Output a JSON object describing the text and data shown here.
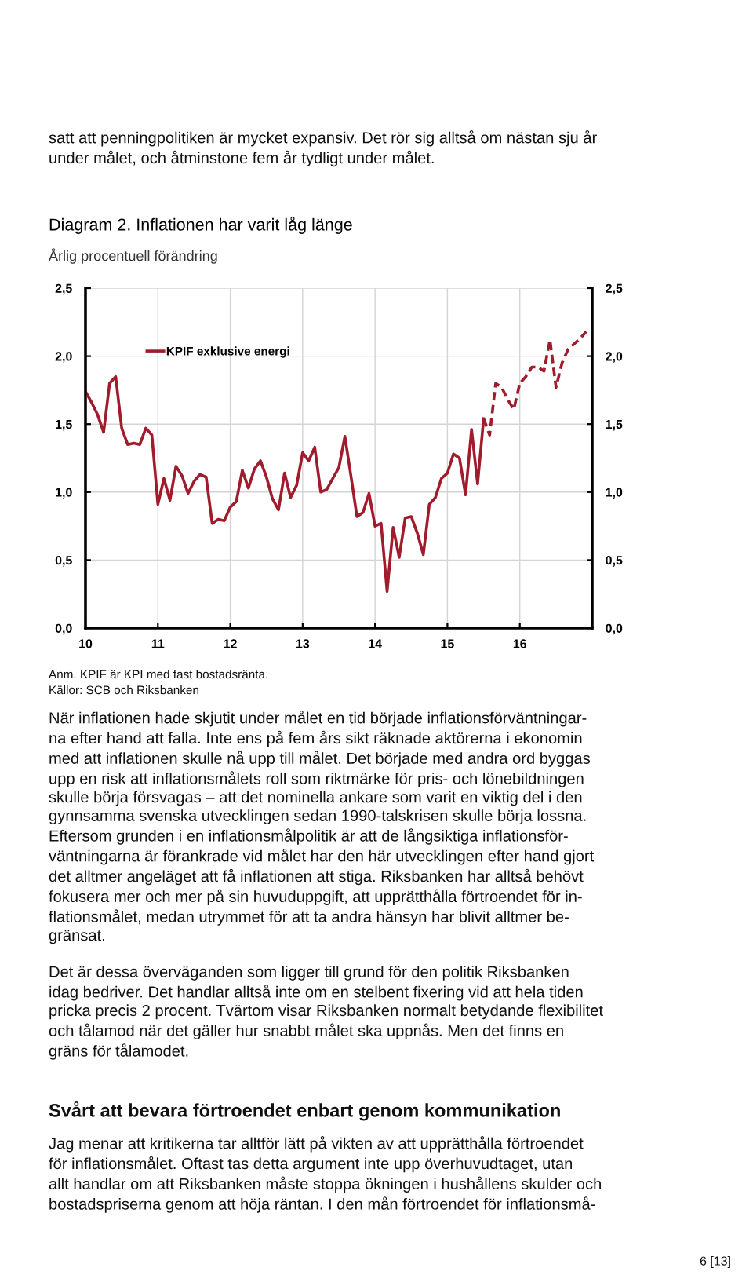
{
  "chart_data": {
    "type": "line",
    "title": "Diagram 2. Inflationen har varit låg länge",
    "subtitle": "Årlig procentuell förändring",
    "series": [
      {
        "name": "KPIF exklusive energi",
        "color": "#a01c2c",
        "line_style": "solid",
        "x": [
          "2010-01",
          "2010-02",
          "2010-03",
          "2010-04",
          "2010-05",
          "2010-06",
          "2010-07",
          "2010-08",
          "2010-09",
          "2010-10",
          "2010-11",
          "2010-12",
          "2011-01",
          "2011-02",
          "2011-03",
          "2011-04",
          "2011-05",
          "2011-06",
          "2011-07",
          "2011-08",
          "2011-09",
          "2011-10",
          "2011-11",
          "2011-12",
          "2012-01",
          "2012-02",
          "2012-03",
          "2012-04",
          "2012-05",
          "2012-06",
          "2012-07",
          "2012-08",
          "2012-09",
          "2012-10",
          "2012-11",
          "2012-12",
          "2013-01",
          "2013-02",
          "2013-03",
          "2013-04",
          "2013-05",
          "2013-06",
          "2013-07",
          "2013-08",
          "2013-09",
          "2013-10",
          "2013-11",
          "2013-12",
          "2014-01",
          "2014-02",
          "2014-03",
          "2014-04",
          "2014-05",
          "2014-06",
          "2014-07",
          "2014-08",
          "2014-09",
          "2014-10",
          "2014-11",
          "2014-12",
          "2015-01",
          "2015-02",
          "2015-03",
          "2015-04",
          "2015-05",
          "2015-06",
          "2015-07"
        ],
        "values": [
          1.74,
          1.66,
          1.57,
          1.44,
          1.8,
          1.85,
          1.47,
          1.35,
          1.36,
          1.35,
          1.47,
          1.42,
          0.91,
          1.1,
          0.94,
          1.19,
          1.12,
          0.99,
          1.08,
          1.13,
          1.11,
          0.77,
          0.8,
          0.79,
          0.89,
          0.93,
          1.16,
          1.03,
          1.17,
          1.23,
          1.11,
          0.95,
          0.87,
          1.14,
          0.96,
          1.05,
          1.29,
          1.23,
          1.33,
          1.0,
          1.02,
          1.1,
          1.18,
          1.41,
          1.12,
          0.82,
          0.85,
          0.99,
          0.75,
          0.77,
          0.27,
          0.74,
          0.52,
          0.81,
          0.82,
          0.7,
          0.54,
          0.91,
          0.96,
          1.1,
          1.14,
          1.28,
          1.25,
          0.98,
          1.46,
          1.06,
          1.54
        ]
      },
      {
        "color": "#a01c2c",
        "line_style": "dashed",
        "x": [
          "2015-07",
          "2015-08",
          "2015-09",
          "2015-10",
          "2015-11",
          "2015-12",
          "2016-01",
          "2016-02",
          "2016-03",
          "2016-04",
          "2016-05",
          "2016-06",
          "2016-07",
          "2016-08",
          "2016-09",
          "2016-10",
          "2016-11",
          "2016-12"
        ],
        "values": [
          1.54,
          1.42,
          1.8,
          1.77,
          1.68,
          1.61,
          1.8,
          1.85,
          1.92,
          1.92,
          1.89,
          2.12,
          1.77,
          1.95,
          2.05,
          2.09,
          2.13,
          2.18
        ]
      }
    ],
    "xlim": [
      "2010-01",
      "2017-01"
    ],
    "xticks": [
      {
        "value": "2010-01",
        "label": "10"
      },
      {
        "value": "2011-01",
        "label": "11"
      },
      {
        "value": "2012-01",
        "label": "12"
      },
      {
        "value": "2013-01",
        "label": "13"
      },
      {
        "value": "2014-01",
        "label": "14"
      },
      {
        "value": "2015-01",
        "label": "15"
      },
      {
        "value": "2016-01",
        "label": "16"
      }
    ],
    "ylim": [
      0,
      2.5
    ],
    "yticks": [
      {
        "value": 0,
        "label": "0,0"
      },
      {
        "value": 0.5,
        "label": "0,5"
      },
      {
        "value": 1,
        "label": "1,0"
      },
      {
        "value": 1.5,
        "label": "1,5"
      },
      {
        "value": 2,
        "label": "2,0"
      },
      {
        "value": 2.5,
        "label": "2,5"
      }
    ],
    "y2lim": [
      0,
      2.5
    ],
    "y2ticks": [
      {
        "value": 0,
        "label": "0,0"
      },
      {
        "value": 0.5,
        "label": "0,5"
      },
      {
        "value": 1,
        "label": "1,0"
      },
      {
        "value": 1.5,
        "label": "1,5"
      },
      {
        "value": 2,
        "label": "2,0"
      },
      {
        "value": 2.5,
        "label": "2,5"
      }
    ],
    "grid": true,
    "legend": "top left",
    "annotations": [
      "satt att penningpolitiken är mycket expansiv. Det rör sig alltså om nästan sju år\nunder målet, och åtminstone fem år tydligt under målet.",
      "Anm. KPIF är KPI med fast bostadsränta.",
      "Källor: SCB och Riksbanken",
      "När inflationen hade skjutit under målet en tid började inflationsförväntningar-\nna efter hand att falla. Inte ens på fem års sikt räknade aktörerna i ekonomin\nmed att inflationen skulle nå upp till målet. Det började med andra ord byggas\nupp en risk att inflationsmålets roll som riktmärke för pris- och lönebildningen\nskulle börja försvagas – att det nominella ankare som varit en viktig del i den\ngynnsamma svenska utvecklingen sedan 1990-talskrisen skulle börja lossna.\nEftersom grunden i en inflationsmålpolitik är att de långsiktiga inflationsför-\nväntningarna är förankrade vid målet har den här utvecklingen efter hand gjort\ndet alltmer angeläget att få inflationen att stiga. Riksbanken har alltså behövt\nfokusera mer och mer på sin huvuduppgift, att upprätthålla förtroendet för in-\nflationsmålet, medan utrymmet för att ta andra hänsyn har blivit alltmer be-\ngränsat.",
      "Det är dessa överväganden som ligger till grund för den politik Riksbanken\nidag bedriver. Det handlar alltså inte om en stelbent fixering vid att hela tiden\npricka precis 2 procent. Tvärtom visar Riksbanken normalt betydande flexibilitet\noch tålamod när det gäller hur snabbt målet ska uppnås. Men det finns en\ngräns för tålamodet.",
      "Svårt att bevara förtroendet enbart genom kommunikation",
      "Jag menar att kritikerna tar alltför lätt på vikten av att upprätthålla förtroendet\nför inflationsmålet. Oftast tas detta argument inte upp överhuvudtaget, utan\nallt handlar om att Riksbanken måste stoppa ökningen i hushållens skulder och\nbostadspriserna genom att höja räntan. I den mån förtroendet för inflationsmå-",
      "6 [13]"
    ]
  }
}
